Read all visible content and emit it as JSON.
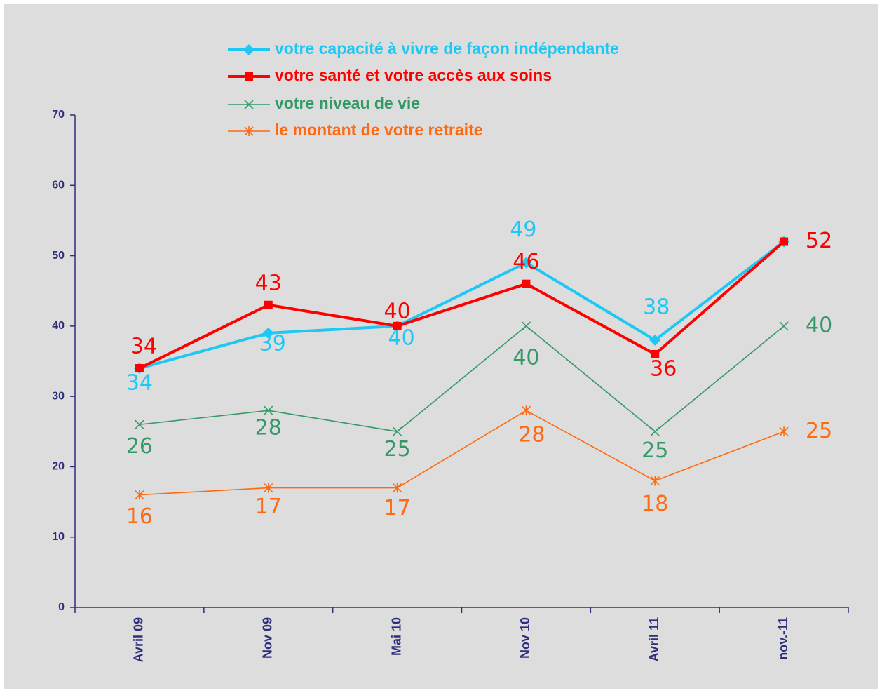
{
  "chart_data": {
    "type": "line",
    "categories": [
      "Avril 09",
      "Nov 09",
      "Mai 10",
      "Nov 10",
      "Avril 11",
      "nov.-11"
    ],
    "series": [
      {
        "name": "votre capacité à vivre de façon indépendante",
        "color": "#1ec8f5",
        "marker": "diamond",
        "values": [
          34,
          39,
          40,
          49,
          38,
          52
        ]
      },
      {
        "name": "votre santé et votre accès aux soins",
        "color": "#ff0000",
        "marker": "square",
        "values": [
          34,
          43,
          40,
          46,
          36,
          52
        ]
      },
      {
        "name": "votre niveau de vie",
        "color": "#339966",
        "marker": "x",
        "values": [
          26,
          28,
          25,
          40,
          25,
          40
        ]
      },
      {
        "name": "le montant de votre retraite",
        "color": "#ff6a10",
        "marker": "star",
        "values": [
          16,
          17,
          17,
          28,
          18,
          25
        ]
      }
    ],
    "ylim": [
      0,
      70
    ],
    "yticks": [
      0,
      10,
      20,
      30,
      40,
      50,
      60,
      70
    ],
    "grid": false,
    "legend": "top"
  }
}
